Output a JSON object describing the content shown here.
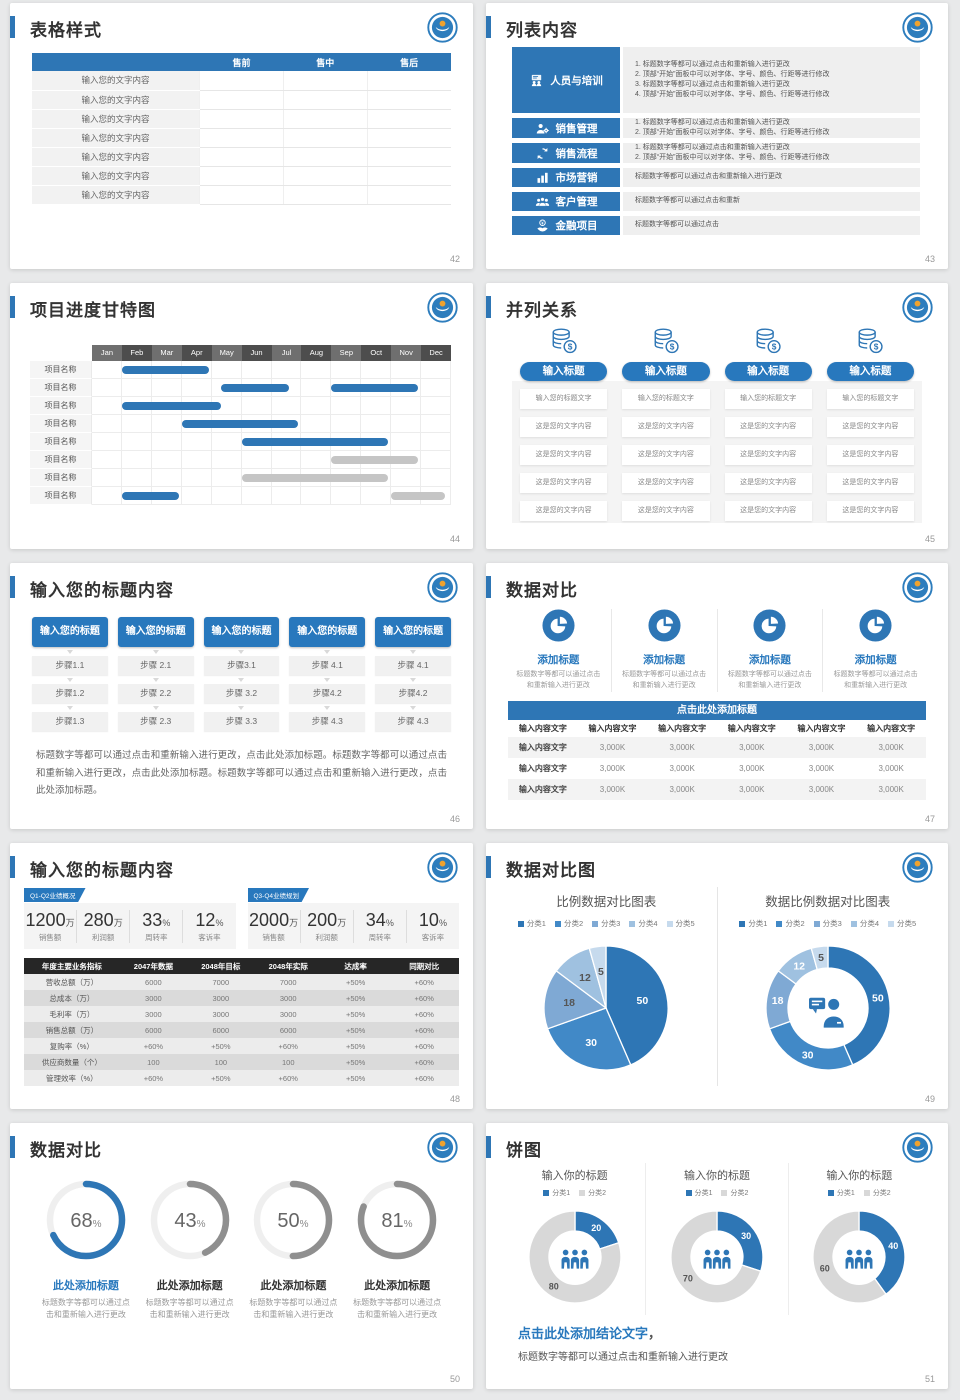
{
  "colors": {
    "blue": "#2e76b5",
    "blue_bright": "#2878bd",
    "bar_gray": "#c5c5c5",
    "dark_header": "#262626",
    "pie_palette": [
      "#2e76b5",
      "#4189c7",
      "#7fa9d4",
      "#9fc1e0",
      "#c6daed"
    ],
    "gantt_header_alt": [
      "#6f6f6f",
      "#4d4d4d"
    ],
    "donut_gray": "#d8d8d8",
    "gauge_gray": "#8f8f8f"
  },
  "slides": {
    "s42": {
      "title": "表格样式",
      "page_no": "42",
      "table": {
        "headers": [
          "",
          "售前",
          "售中",
          "售后"
        ],
        "row_label": "输入您的文字内容",
        "row_count": 7
      }
    },
    "s43": {
      "title": "列表内容",
      "page_no": "43",
      "items": [
        {
          "icon": "training-icon",
          "label": "人员与培训",
          "size": "tall",
          "lines": [
            "1.  标题数字等都可以通过点击和重新输入进行更改",
            "2.  顶部“开始”面板中可以对字体、字号、颜色、行距等进行修改",
            "3.  标题数字等都可以通过点击和重新输入进行更改",
            "4.  顶部“开始”面板中可以对字体、字号、颜色、行距等进行修改"
          ]
        },
        {
          "icon": "sales-management-icon",
          "label": "销售管理",
          "size": "two",
          "lines": [
            "1.  标题数字等都可以通过点击和重新输入进行更改",
            "2.  顶部“开始”面板中可以对字体、字号、颜色、行距等进行修改"
          ]
        },
        {
          "icon": "sales-process-icon",
          "label": "销售流程",
          "size": "two",
          "lines": [
            "1.  标题数字等都可以通过点击和重新输入进行更改",
            "2.  顶部“开始”面板中可以对字体、字号、颜色、行距等进行修改"
          ]
        },
        {
          "icon": "marketing-icon",
          "label": "市场营销",
          "size": "one",
          "lines": [
            "标题数字等都可以通过点击和重新输入进行更改"
          ]
        },
        {
          "icon": "customer-icon",
          "label": "客户管理",
          "size": "one",
          "lines": [
            "标题数字等都可以通过点击和重新"
          ]
        },
        {
          "icon": "finance-icon",
          "label": "金融项目",
          "size": "one",
          "lines": [
            "标题数字等都可以通过点击"
          ]
        }
      ]
    },
    "s44": {
      "title": "项目进度甘特图",
      "page_no": "44",
      "chart": {
        "type": "gantt",
        "months": [
          "Jan",
          "Feb",
          "Mar",
          "Apr",
          "May",
          "Jun",
          "Jul",
          "Aug",
          "Sep",
          "Oct",
          "Nov",
          "Dec"
        ],
        "row_label": "项目名称",
        "bars": [
          [
            [
              1.0,
              3.9,
              "blue"
            ]
          ],
          [
            [
              4.3,
              6.6,
              "blue"
            ],
            [
              8.0,
              10.9,
              "blue"
            ]
          ],
          [
            [
              1.0,
              4.3,
              "blue"
            ]
          ],
          [
            [
              3.0,
              6.9,
              "blue"
            ]
          ],
          [
            [
              5.0,
              9.9,
              "blue"
            ]
          ],
          [
            [
              8.0,
              10.9,
              "gray"
            ]
          ],
          [
            [
              5.0,
              9.9,
              "gray"
            ]
          ],
          [
            [
              1.0,
              2.9,
              "blue"
            ],
            [
              10.0,
              11.8,
              "gray"
            ]
          ]
        ]
      }
    },
    "s45": {
      "title": "并列关系",
      "page_no": "45",
      "columns": [
        {
          "icon": "coins-icon",
          "button": "输入标题",
          "rows": [
            "输入您的标题文字",
            "这是您的文字内容",
            "这是您的文字内容",
            "这是您的文字内容",
            "这是您的文字内容"
          ]
        },
        {
          "icon": "coins-icon",
          "button": "输入标题",
          "rows": [
            "输入您的标题文字",
            "这是您的文字内容",
            "这是您的文字内容",
            "这是您的文字内容",
            "这是您的文字内容"
          ]
        },
        {
          "icon": "coins-icon",
          "button": "输入标题",
          "rows": [
            "输入您的标题文字",
            "这是您的文字内容",
            "这是您的文字内容",
            "这是您的文字内容",
            "这是您的文字内容"
          ]
        },
        {
          "icon": "coins-icon",
          "button": "输入标题",
          "rows": [
            "输入您的标题文字",
            "这是您的文字内容",
            "这是您的文字内容",
            "这是您的文字内容",
            "这是您的文字内容"
          ]
        }
      ]
    },
    "s46": {
      "title": "输入您的标题内容",
      "page_no": "46",
      "header_label": "输入您的标题",
      "columns": [
        [
          "步骤1.1",
          "步骤1.2",
          "步骤1.3"
        ],
        [
          "步骤 2.1",
          "步骤 2.2",
          "步骤 2.3"
        ],
        [
          "步骤3.1",
          "步骤 3.2",
          "步骤 3.3"
        ],
        [
          "步骤 4.1",
          "步骤4.2",
          "步骤 4.3"
        ],
        [
          "步骤 4.1",
          "步骤4.2",
          "步骤 4.3"
        ]
      ],
      "paragraph": "标题数字等都可以通过点击和重新输入进行更改，点击此处添加标题。标题数字等都可以通过点击和重新输入进行更改，点击此处添加标题。标题数字等都可以通过点击和重新输入进行更改，点击此处添加标题。"
    },
    "s47": {
      "title": "数据对比",
      "page_no": "47",
      "features": [
        {
          "icon": "pie-icon",
          "title": "添加标题",
          "desc": "标题数字等都可以通过点击和重新输入进行更改"
        },
        {
          "icon": "pie-icon",
          "title": "添加标题",
          "desc": "标题数字等都可以通过点击和重新输入进行更改"
        },
        {
          "icon": "pie-icon",
          "title": "添加标题",
          "desc": "标题数字等都可以通过点击和重新输入进行更改"
        },
        {
          "icon": "pie-icon",
          "title": "添加标题",
          "desc": "标题数字等都可以通过点击和重新输入进行更改"
        }
      ],
      "bar_label": "点击此处添加标题",
      "table": {
        "headers": [
          "输入内容文字",
          "输入内容文字",
          "输入内容文字",
          "输入内容文字",
          "输入内容文字",
          "输入内容文字"
        ],
        "rows": [
          [
            "输入内容文字",
            "3,000K",
            "3,000K",
            "3,000K",
            "3,000K",
            "3,000K"
          ],
          [
            "输入内容文字",
            "3,000K",
            "3,000K",
            "3,000K",
            "3,000K",
            "3,000K"
          ],
          [
            "输入内容文字",
            "3,000K",
            "3,000K",
            "3,000K",
            "3,000K",
            "3,000K"
          ]
        ]
      }
    },
    "s48": {
      "title": "输入您的标题内容",
      "page_no": "48",
      "groups": [
        {
          "tag": "Q1-Q2业绩概况",
          "stats": [
            {
              "value": "1200",
              "unit": "万",
              "label": "销售额"
            },
            {
              "value": "280",
              "unit": "万",
              "label": "利润额"
            },
            {
              "value": "33",
              "unit": "%",
              "label": "周转率"
            },
            {
              "value": "12",
              "unit": "%",
              "label": "客诉率"
            }
          ]
        },
        {
          "tag": "Q3-Q4业绩规划",
          "stats": [
            {
              "value": "2000",
              "unit": "万",
              "label": "销售额"
            },
            {
              "value": "200",
              "unit": "万",
              "label": "利润额"
            },
            {
              "value": "34",
              "unit": "%",
              "label": "周转率"
            },
            {
              "value": "10",
              "unit": "%",
              "label": "客诉率"
            }
          ]
        }
      ],
      "table": {
        "headers": [
          "年度主要业务指标",
          "2047年数据",
          "2048年目标",
          "2048年实际",
          "达成率",
          "同期对比"
        ],
        "rows": [
          [
            "营收总额（万）",
            "6000",
            "7000",
            "7000",
            "+50%",
            "+60%"
          ],
          [
            "总成本（万）",
            "3000",
            "3000",
            "3000",
            "+50%",
            "+60%"
          ],
          [
            "毛利率（万）",
            "3000",
            "3000",
            "3000",
            "+50%",
            "+60%"
          ],
          [
            "销售总额（万）",
            "6000",
            "6000",
            "6000",
            "+50%",
            "+60%"
          ],
          [
            "复购率（%）",
            "+60%",
            "+50%",
            "+60%",
            "+50%",
            "+60%"
          ],
          [
            "供应商数量（个）",
            "100",
            "100",
            "100",
            "+50%",
            "+60%"
          ],
          [
            "管理效率（%）",
            "+60%",
            "+50%",
            "+60%",
            "+50%",
            "+60%"
          ]
        ]
      }
    },
    "s49": {
      "title": "数据对比图",
      "page_no": "49",
      "charts": [
        {
          "type": "pie",
          "title": "比例数据对比图表",
          "legend": [
            "分类1",
            "分类2",
            "分类3",
            "分类4",
            "分类5"
          ],
          "values": [
            50,
            30,
            18,
            12,
            5
          ]
        },
        {
          "type": "donut",
          "title": "数据比例数据对比图表",
          "legend": [
            "分类1",
            "分类2",
            "分类3",
            "分类4",
            "分类5"
          ],
          "values": [
            50,
            30,
            18,
            12,
            5
          ],
          "center_icon": "speaker-person-icon"
        }
      ]
    },
    "s50": {
      "title": "数据对比",
      "page_no": "50",
      "gauges": [
        {
          "percent": 68,
          "accent": true,
          "title": "此处添加标题",
          "desc": "标题数字等都可以通过点击和重新输入进行更改"
        },
        {
          "percent": 43,
          "accent": false,
          "title": "此处添加标题",
          "desc": "标题数字等都可以通过点击和重新输入进行更改"
        },
        {
          "percent": 50,
          "accent": false,
          "title": "此处添加标题",
          "desc": "标题数字等都可以通过点击和重新输入进行更改"
        },
        {
          "percent": 81,
          "accent": false,
          "title": "此处添加标题",
          "desc": "标题数字等都可以通过点击和重新输入进行更改"
        }
      ]
    },
    "s51": {
      "title": "饼图",
      "page_no": "51",
      "charts": [
        {
          "type": "donut",
          "title": "输入你的标题",
          "legend": [
            "分类1",
            "分类2"
          ],
          "blue": 20,
          "gray": 80,
          "center_icon": "people-icon"
        },
        {
          "type": "donut",
          "title": "输入你的标题",
          "legend": [
            "分类1",
            "分类2"
          ],
          "blue": 30,
          "gray": 70,
          "center_icon": "people-icon"
        },
        {
          "type": "donut",
          "title": "输入你的标题",
          "legend": [
            "分类1",
            "分类2"
          ],
          "blue": 40,
          "gray": 60,
          "center_icon": "people-icon"
        }
      ],
      "conclusion_title": "点击此处添加结论文字",
      "conclusion_comma": "，",
      "conclusion_text": "标题数字等都可以通过点击和重新输入进行更改"
    }
  }
}
